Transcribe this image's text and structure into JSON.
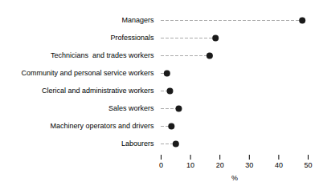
{
  "chart_data": {
    "type": "lollipop",
    "orientation": "horizontal",
    "categories": [
      "Managers",
      "Professionals",
      "Technicians  and trades workers",
      "Community and personal service workers",
      "Clerical and administrative workers",
      "Sales workers",
      "Machinery operators and drivers",
      "Labourers"
    ],
    "values": [
      48.0,
      18.5,
      16.5,
      2.0,
      3.0,
      6.0,
      3.5,
      5.0
    ],
    "xlim": [
      0,
      50
    ],
    "xticks": [
      0,
      10,
      20,
      30,
      40,
      50
    ],
    "xlabel": "%",
    "color": "#1a1a1a",
    "line_style": "dashed",
    "marker": "circle",
    "grid": false
  }
}
